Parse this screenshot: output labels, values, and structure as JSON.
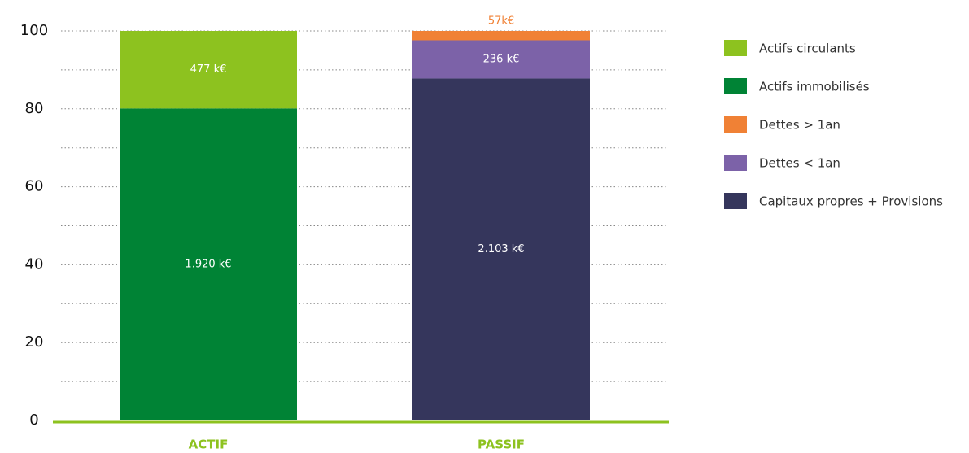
{
  "chart_data": {
    "type": "stacked_bar",
    "categories": [
      "ACTIF",
      "PASSIF"
    ],
    "series": [
      {
        "name": "Actifs circulants",
        "color": "#8dc21f",
        "values": [
          19.9,
          null
        ],
        "value_labels": [
          "477 k€",
          null
        ]
      },
      {
        "name": "Actifs immobilisés",
        "color": "#008335",
        "values": [
          80.1,
          null
        ],
        "value_labels": [
          "1.920 k€",
          null
        ]
      },
      {
        "name": "Dettes > 1an",
        "color": "#f08135",
        "values": [
          null,
          2.4
        ],
        "value_labels": [
          null,
          "57k€"
        ]
      },
      {
        "name": "Dettes < 1an",
        "color": "#7c62a8",
        "values": [
          null,
          9.8
        ],
        "value_labels": [
          null,
          "236 k€"
        ]
      },
      {
        "name": "Capitaux propres + Provisions",
        "color": "#35365c",
        "values": [
          null,
          87.8
        ],
        "value_labels": [
          null,
          "2.103 k€"
        ]
      }
    ],
    "ylim": [
      0,
      100
    ],
    "yticks": [
      0,
      20,
      40,
      60,
      80,
      100
    ],
    "minor_yticks": [
      10,
      30,
      50,
      70,
      90
    ],
    "grid": true,
    "legend": "right",
    "axis_color": "#8dc21f",
    "category_label_color": "#8dc21f"
  }
}
